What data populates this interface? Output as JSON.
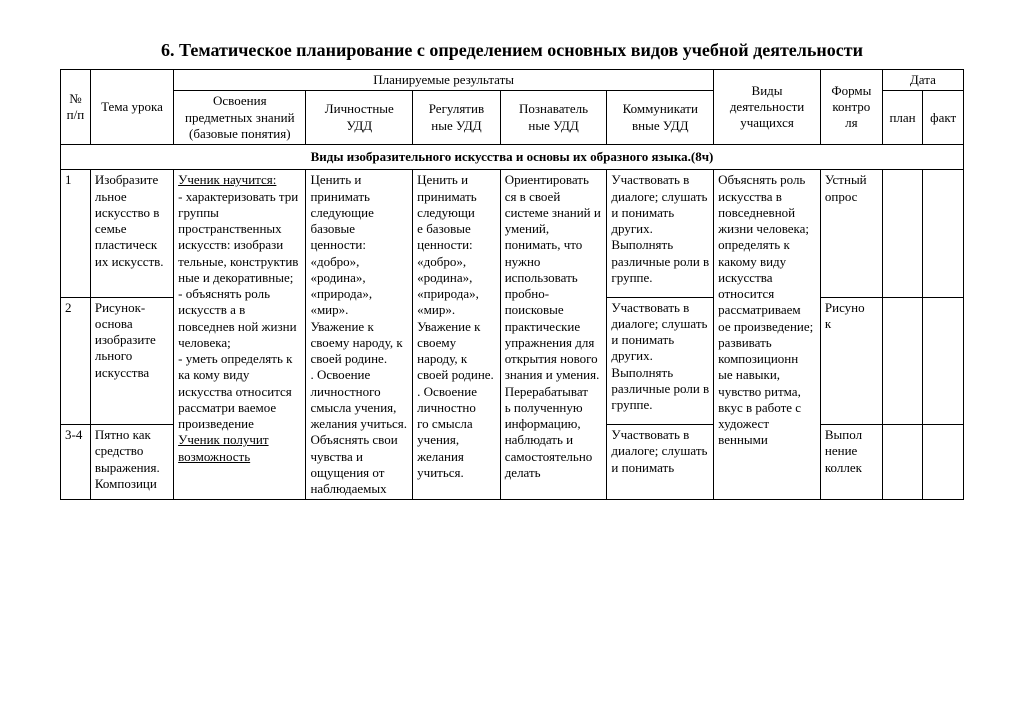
{
  "title": "6. Тематическое планирование с определением основных видов учебной деятельности",
  "headers": {
    "num": "№ п/п",
    "tema": "Тема урока",
    "plan_results": "Планируемые результаты",
    "osv": "Освоения предметных знаний (базовые понятия)",
    "lich": "Личностные УДД",
    "reg": "Регулятив\nные УДД",
    "poz": "Познаватель\nные УДД",
    "kom": "Коммуникати\nвные УДД",
    "vid": "Виды деятельности учащихся",
    "form": "Формы контро\nля",
    "date": "Дата",
    "plan": "план",
    "fakt": "факт"
  },
  "section": "Виды изобразительного искусства и основы их образного языка.(8ч)",
  "rows": {
    "r1": {
      "num": "1",
      "tema": "Изобразите\nльное искусство в семье пластическ\nих искусств.",
      "osv_learn_label": "Ученик научится:",
      "osv_p1": "- характеризовать три группы пространственных искусств: изобрази тельные, конструктив ные и декоративные;",
      "osv_p2": "- объяснять роль искусств а в повседнев ной жизни человека;",
      "osv_p3": "- уметь определять к ка кому виду искусства относится рассматри ваемое произведение",
      "osv_will_label": "Ученик получит возможность",
      "lich": "Ценить и принимать следующие базовые ценности: «добро», «родина», «природа», «мир».\n Уважение к своему народу, к своей родине.\n. Освоение личностного смысла учения, желания учиться.\n Объяснять свои чувства и ощущения от наблюдаемых",
      "reg": "Ценить и принимать следующи\nе базовые ценности: «добро», «родина», «природа», «мир».\n Уважение к своему народу, к своей родине.\n. Освоение личностно\nго смысла учения, желания учиться.",
      "poz": "Ориентировать\nся в своей системе знаний и умений, понимать, что нужно использовать пробно-поисковые практические упражнения для открытия нового знания и умения.\nПерерабатыват\nь полученную информацию, наблюдать и самостоятельно делать",
      "kom": "Участвовать в диалоге; слушать и понимать других.\nВыполнять различные роли в группе.",
      "vid": "Объяснять роль искусства в повседневной жизни человека; определять к какому виду искусства относится рассматриваем\nое произведение; развивать композиционн\nые навыки, чувство ритма, вкус в работе с художест венными",
      "form": "Устный опрос"
    },
    "r2": {
      "num": "2",
      "tema": "Рисунок-основа изобразите\nльного искусства",
      "kom": "Участвовать в диалоге; слушать и понимать других.\nВыполнять различные роли в группе.",
      "form": "Рисуно\nк"
    },
    "r3": {
      "num": "3-4",
      "tema": "Пятно как средство выражения. Композици",
      "kom": "Участвовать в диалоге; слушать и понимать",
      "form": "Выпол\nнение коллек"
    }
  }
}
